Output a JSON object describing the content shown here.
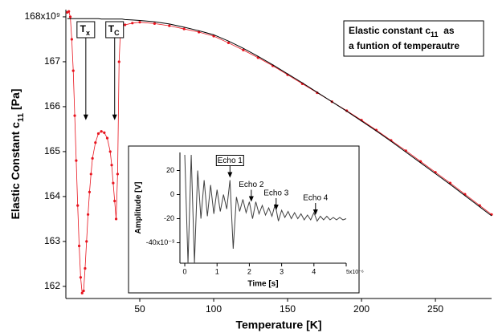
{
  "chart_data": [
    {
      "type": "line",
      "xlabel": "Temperature [K]",
      "ylabel": {
        "text": "Elastic Constant c",
        "sub": "11",
        "after": " [Pa]"
      },
      "note": [
        {
          "text": "Elastic constant c",
          "sub": "11",
          "after": "  as"
        },
        {
          "text": "a funtion of temperautre"
        }
      ],
      "annotations": [
        {
          "text": "T",
          "sub": "x",
          "x": 13.5,
          "y": 165.7
        },
        {
          "text": "T",
          "sub": "C",
          "x": 33,
          "y": 165.7
        }
      ],
      "xlim": [
        0,
        288
      ],
      "xticks": [
        50,
        100,
        150,
        200,
        250
      ],
      "ylim": [
        161.73,
        168.16
      ],
      "yticks": [
        162,
        163,
        164,
        165,
        166,
        167,
        {
          "value": 168,
          "label": "168x10⁹"
        }
      ],
      "x": [
        1,
        2,
        3,
        4,
        5,
        6,
        7,
        8,
        9,
        10,
        11,
        12,
        13,
        14,
        15,
        16,
        17,
        18,
        20,
        22,
        24,
        26,
        28,
        30,
        31,
        32,
        33,
        34,
        35,
        36,
        37,
        38,
        40,
        45,
        50,
        60,
        70,
        80,
        90,
        100,
        110,
        120,
        130,
        140,
        150,
        160,
        170,
        180,
        190,
        200,
        210,
        220,
        230,
        240,
        250,
        260,
        270,
        280,
        288
      ],
      "series": [
        {
          "color": "#e8141e",
          "marker": true,
          "values": [
            168.1,
            168.12,
            168.0,
            167.5,
            166.8,
            165.8,
            164.8,
            163.8,
            162.9,
            162.2,
            161.85,
            161.9,
            162.4,
            163.0,
            163.6,
            164.1,
            164.5,
            164.85,
            165.2,
            165.4,
            165.45,
            165.42,
            165.3,
            165.0,
            164.7,
            164.3,
            163.9,
            163.5,
            164.5,
            167.0,
            167.75,
            167.8,
            167.82,
            167.86,
            167.88,
            167.85,
            167.8,
            167.73,
            167.66,
            167.57,
            167.42,
            167.26,
            167.09,
            166.91,
            166.71,
            166.51,
            166.31,
            166.11,
            165.91,
            165.7,
            165.48,
            165.25,
            165.02,
            164.78,
            164.54,
            164.3,
            164.05,
            163.8,
            163.6
          ]
        },
        {
          "color": "#000000",
          "marker": false,
          "values": [
            167.96,
            167.96,
            167.96,
            167.96,
            167.96,
            167.96,
            167.96,
            167.96,
            167.96,
            167.96,
            167.96,
            167.96,
            167.96,
            167.96,
            167.96,
            167.96,
            167.96,
            167.96,
            167.96,
            167.96,
            167.95,
            167.95,
            167.95,
            167.95,
            167.95,
            167.95,
            167.95,
            167.95,
            167.95,
            167.95,
            167.95,
            167.95,
            167.94,
            167.93,
            167.92,
            167.89,
            167.84,
            167.77,
            167.69,
            167.6,
            167.46,
            167.3,
            167.12,
            166.93,
            166.73,
            166.53,
            166.32,
            166.11,
            165.9,
            165.68,
            165.46,
            165.23,
            164.99,
            164.75,
            164.51,
            164.27,
            164.02,
            163.77,
            163.57
          ]
        }
      ]
    },
    {
      "type": "line",
      "xlabel": "Time [s]",
      "ylabel": {
        "text": "Amplitude [V]"
      },
      "annotations": [
        {
          "text": "Echo 1",
          "x": 1.4,
          "y": 14
        },
        {
          "text": "Echo 2",
          "x": 2.06,
          "y": -6
        },
        {
          "text": "Echo 3",
          "x": 2.83,
          "y": -13
        },
        {
          "text": "Echo 4",
          "x": 4.05,
          "y": -17
        }
      ],
      "xlim": [
        -0.15,
        5.0
      ],
      "xticks": [
        0,
        1,
        2,
        3,
        4,
        {
          "value": 5,
          "label": "5x10⁻⁶"
        }
      ],
      "ylim": [
        -57,
        35
      ],
      "yticks": [
        20,
        0,
        -20,
        {
          "value": -40,
          "label": "-40x10⁻³"
        }
      ],
      "x": [
        0,
        0.1,
        0.2,
        0.3,
        0.4,
        0.5,
        0.6,
        0.7,
        0.8,
        0.9,
        1.0,
        1.1,
        1.2,
        1.3,
        1.4,
        1.5,
        1.6,
        1.7,
        1.8,
        1.9,
        2.0,
        2.1,
        2.2,
        2.3,
        2.4,
        2.5,
        2.6,
        2.7,
        2.8,
        2.9,
        3.0,
        3.1,
        3.2,
        3.3,
        3.4,
        3.5,
        3.6,
        3.7,
        3.8,
        3.9,
        4.0,
        4.1,
        4.2,
        4.3,
        4.4,
        4.5,
        4.6,
        4.7,
        4.8,
        4.9,
        5.0
      ],
      "series": [
        {
          "color": "#404040",
          "marker": false,
          "values": [
            33,
            -57,
            33,
            -57,
            20,
            -20,
            12,
            -18,
            8,
            -16,
            4,
            -14,
            0,
            -12,
            12,
            -45,
            -2,
            -14,
            -4,
            -15,
            -6,
            -20,
            -6,
            -16,
            -9,
            -17,
            -11,
            -18,
            -8,
            -22,
            -13,
            -19,
            -14,
            -20,
            -15,
            -20,
            -16,
            -21,
            -17,
            -21,
            -15,
            -22,
            -18,
            -21,
            -18,
            -21,
            -19,
            -21,
            -19,
            -21,
            -20
          ]
        }
      ]
    }
  ]
}
